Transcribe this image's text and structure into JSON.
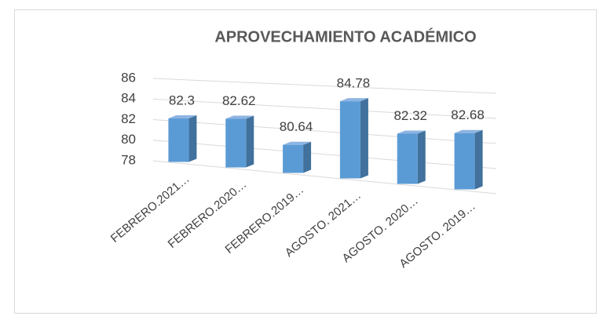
{
  "chart_data": {
    "type": "bar",
    "title": "APROVECHAMIENTO ACADÉMICO",
    "categories": [
      "FEBRERO.2021…",
      "FEBRERO.2020…",
      "FEBRERO.2019…",
      "AGOSTO. 2021…",
      "AGOSTO. 2020…",
      "AGOSTO. 2019…"
    ],
    "values": [
      82.3,
      82.62,
      80.64,
      84.78,
      82.32,
      82.68
    ],
    "color": "#5b9bd5",
    "side_color": "#41719c",
    "top_color": "#8db4e2",
    "ylim": [
      78,
      86
    ],
    "yticks": [
      78,
      80,
      82,
      84,
      86
    ],
    "grid": true
  }
}
